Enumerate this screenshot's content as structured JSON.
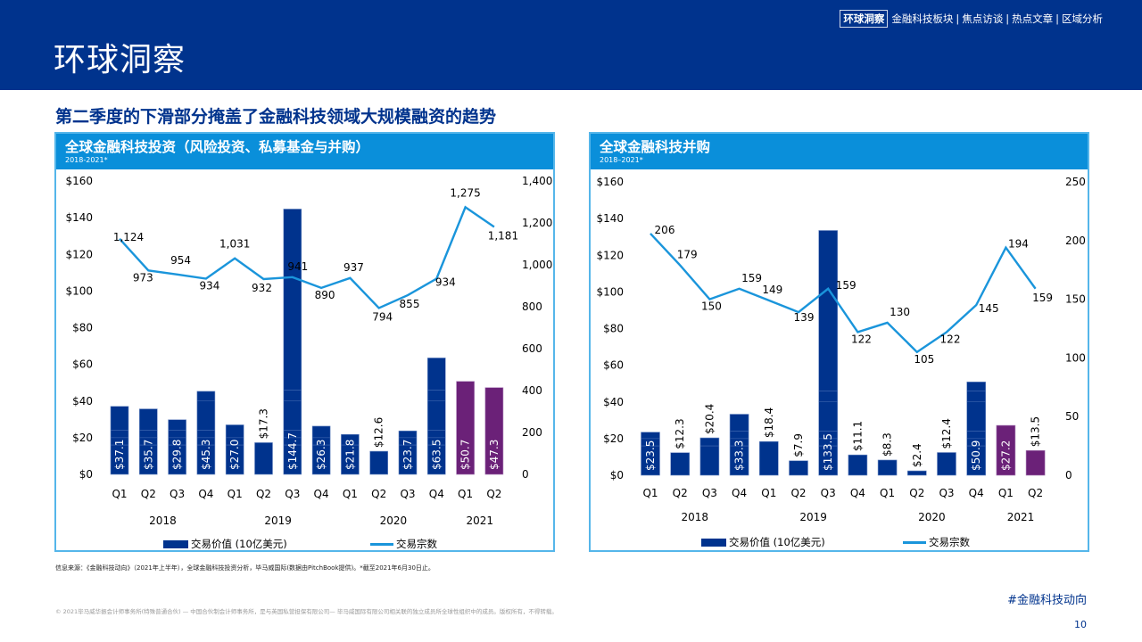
{
  "header": {
    "title": "环球洞察",
    "nav": {
      "active": "环球洞察",
      "items": [
        "金融科技板块",
        "焦点访谈",
        "热点文章",
        "区域分析"
      ],
      "separator": "|"
    }
  },
  "headline": "第二季度的下滑部分掩盖了金融科技领域大规模融资的趋势",
  "colors": {
    "header_bg": "#00338d",
    "panel_header": "#0a8fda",
    "bar_primary": "#00338d",
    "bar_highlight": "#6b2178",
    "line": "#1a95db"
  },
  "chart_data": [
    {
      "type": "bar+line",
      "title": "全球金融科技投资（风险投资、私募基金与并购）",
      "subtitle": "2018-2021*",
      "categories": [
        "Q1",
        "Q2",
        "Q3",
        "Q4",
        "Q1",
        "Q2",
        "Q3",
        "Q4",
        "Q1",
        "Q2",
        "Q3",
        "Q4",
        "Q1",
        "Q2"
      ],
      "year_groups": [
        {
          "label": "2018",
          "count": 4
        },
        {
          "label": "2019",
          "count": 4
        },
        {
          "label": "2020",
          "count": 4
        },
        {
          "label": "2021",
          "count": 2
        }
      ],
      "series": [
        {
          "name": "交易价值 (10亿美元)",
          "type": "bar",
          "axis": "left",
          "values": [
            37.1,
            35.7,
            29.8,
            45.3,
            27.0,
            17.3,
            144.7,
            26.3,
            21.8,
            12.6,
            23.7,
            63.5,
            50.7,
            47.3
          ],
          "labels": [
            "$37.1",
            "$35.7",
            "$29.8",
            "$45.3",
            "$27.0",
            "$17.3",
            "$144.7",
            "$26.3",
            "$21.8",
            "$12.6",
            "$23.7",
            "$63.5",
            "$50.7",
            "$47.3"
          ],
          "highlight_indices": [
            12,
            13
          ]
        },
        {
          "name": "交易宗数",
          "type": "line",
          "axis": "right",
          "values": [
            1124,
            973,
            954,
            934,
            1031,
            932,
            941,
            890,
            937,
            794,
            855,
            934,
            1275,
            1181
          ],
          "labels": [
            "1,124",
            "973",
            "954",
            "934",
            "1,031",
            "932",
            "941",
            "890",
            "937",
            "794",
            "855",
            "934",
            "1,275",
            "1,181"
          ]
        }
      ],
      "y_left": {
        "min": 0,
        "max": 160,
        "ticks": [
          "$0",
          "$20",
          "$40",
          "$60",
          "$80",
          "$100",
          "$120",
          "$140",
          "$160"
        ]
      },
      "y_right": {
        "min": 0,
        "max": 1400,
        "ticks": [
          "0",
          "200",
          "400",
          "600",
          "800",
          "1,000",
          "1,200",
          "1,400"
        ]
      },
      "legend": [
        "交易价值 (10亿美元)",
        "交易宗数"
      ],
      "legend_position": "bottom",
      "grid": false
    },
    {
      "type": "bar+line",
      "title": "全球金融科技并购",
      "subtitle": "2018–2021*",
      "categories": [
        "Q1",
        "Q2",
        "Q3",
        "Q4",
        "Q1",
        "Q2",
        "Q3",
        "Q4",
        "Q1",
        "Q2",
        "Q3",
        "Q4",
        "Q1",
        "Q2"
      ],
      "year_groups": [
        {
          "label": "2018",
          "count": 4
        },
        {
          "label": "2019",
          "count": 4
        },
        {
          "label": "2020",
          "count": 4
        },
        {
          "label": "2021",
          "count": 2
        }
      ],
      "series": [
        {
          "name": "交易价值 (10亿美元)",
          "type": "bar",
          "axis": "left",
          "values": [
            23.5,
            12.3,
            20.4,
            33.3,
            18.4,
            7.9,
            133.5,
            11.1,
            8.3,
            2.4,
            12.4,
            50.9,
            27.2,
            13.5
          ],
          "labels": [
            "$23.5",
            "$12.3",
            "$20.4",
            "$33.3",
            "$18.4",
            "$7.9",
            "$133.5",
            "$11.1",
            "$8.3",
            "$2.4",
            "$12.4",
            "$50.9",
            "$27.2",
            "$13.5"
          ],
          "highlight_indices": [
            12,
            13
          ]
        },
        {
          "name": "交易宗数",
          "type": "line",
          "axis": "right",
          "values": [
            206,
            179,
            150,
            159,
            149,
            139,
            159,
            122,
            130,
            105,
            122,
            145,
            194,
            159
          ],
          "labels": [
            "206",
            "179",
            "150",
            "159",
            "149",
            "139",
            "159",
            "122",
            "130",
            "105",
            "122",
            "145",
            "194",
            "159"
          ]
        }
      ],
      "y_left": {
        "min": 0,
        "max": 160,
        "ticks": [
          "$0",
          "$20",
          "$40",
          "$60",
          "$80",
          "$100",
          "$120",
          "$140",
          "$160"
        ]
      },
      "y_right": {
        "min": 0,
        "max": 250,
        "ticks": [
          "0",
          "50",
          "100",
          "150",
          "200",
          "250"
        ]
      },
      "legend": [
        "交易价值 (10亿美元)",
        "交易宗数"
      ],
      "legend_position": "bottom",
      "grid": false
    }
  ],
  "footer": {
    "source": "信息来源：《金融科技动向》（2021年上半年），全球金融科技投资分析，毕马威国际(数据由PitchBook提供)。*截至2021年6月30日止。",
    "copyright": "© 2021毕马威华振会计师事务所(特殊普通合伙) — 中国合伙制会计师事务所，是与英国私营担保有限公司— 毕马威国际有限公司相关联的独立成员所全球性组织中的成员。版权所有，不得转载。",
    "hashtag": "#金融科技动向",
    "page_number": "10"
  }
}
